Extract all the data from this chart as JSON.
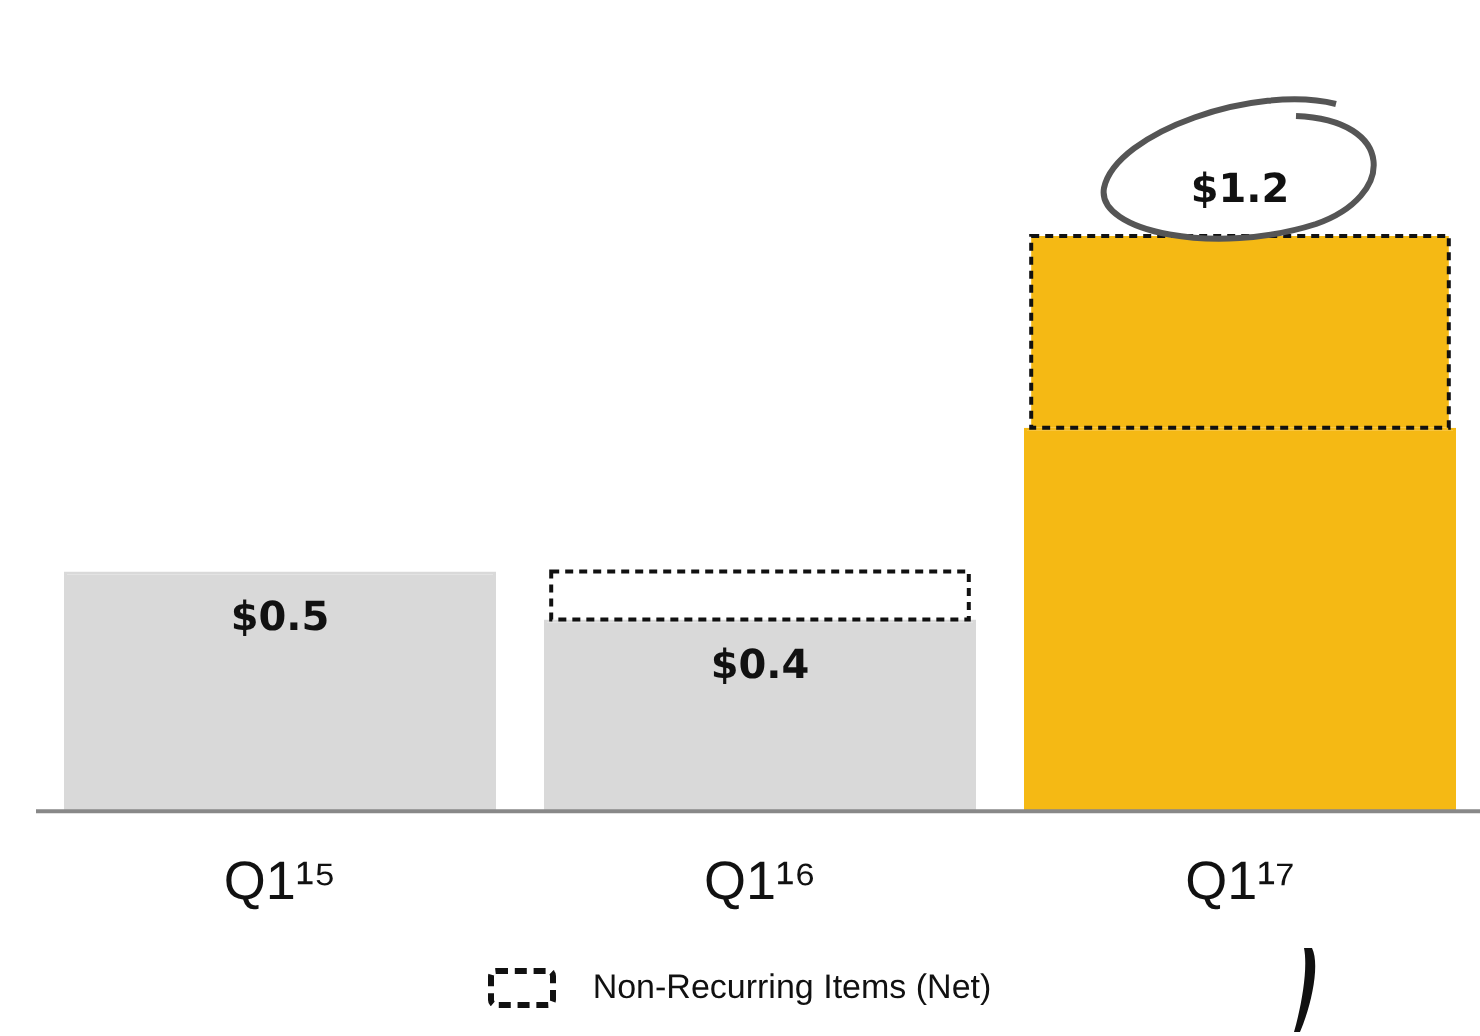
{
  "chart_data": {
    "type": "bar",
    "stacked": true,
    "categories": [
      "Q1¹⁵",
      "Q1¹⁶",
      "Q1¹⁷"
    ],
    "legend": "bottom",
    "series": [
      {
        "colors": [
          "#d9d9d9",
          "#d9d9d9",
          "#f5b914"
        ],
        "values": [
          0.5,
          0.4,
          0.8
        ],
        "value_labels": [
          "$0.5",
          "$0.4",
          null
        ]
      },
      {
        "name": "Non-Recurring Items (Net)",
        "colors": [
          null,
          "#ffffff",
          "#f5b914"
        ],
        "values": [
          null,
          0.1,
          0.4
        ],
        "line_style": "dashed"
      }
    ],
    "totals": [
      null,
      null,
      "$1.2"
    ]
  }
}
